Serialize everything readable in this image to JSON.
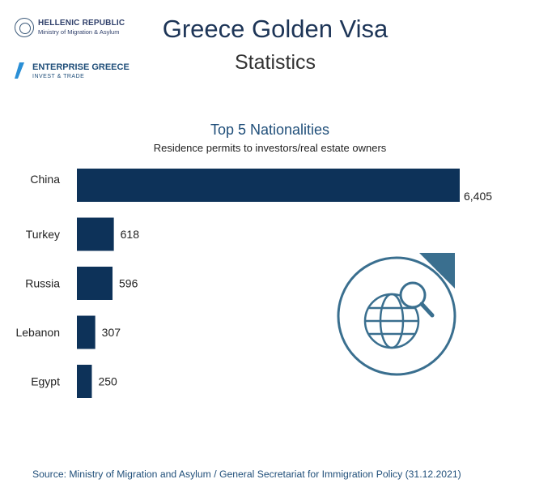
{
  "header": {
    "title": "Greece Golden Visa",
    "subtitle": "Statistics"
  },
  "logos": {
    "hellenic_line1": "HELLENIC REPUBLIC",
    "hellenic_line2": "Ministry of Migration & Asylum",
    "enterprise_line1": "ENTERPRISE GREECE",
    "enterprise_line2": "INVEST & TRADE"
  },
  "chart_data": {
    "type": "bar",
    "orientation": "horizontal",
    "title": "Top 5 Nationalities",
    "subtitle": "Residence permits to investors/real estate owners",
    "categories": [
      "China",
      "Turkey",
      "Russia",
      "Lebanon",
      "Egypt"
    ],
    "values": [
      6405,
      618,
      596,
      307,
      250
    ],
    "value_labels": [
      "6,405",
      "618",
      "596",
      "307",
      "250"
    ],
    "bar_color": "#0d3259",
    "grid": false,
    "legend": "none"
  },
  "footer": {
    "source": "Source: Ministry of Migration and Asylum / General Secretariat for Immigration Policy (31.12.2021)"
  },
  "decor": {
    "icon": "globe-search-icon",
    "accent": "#3a6f8f"
  }
}
